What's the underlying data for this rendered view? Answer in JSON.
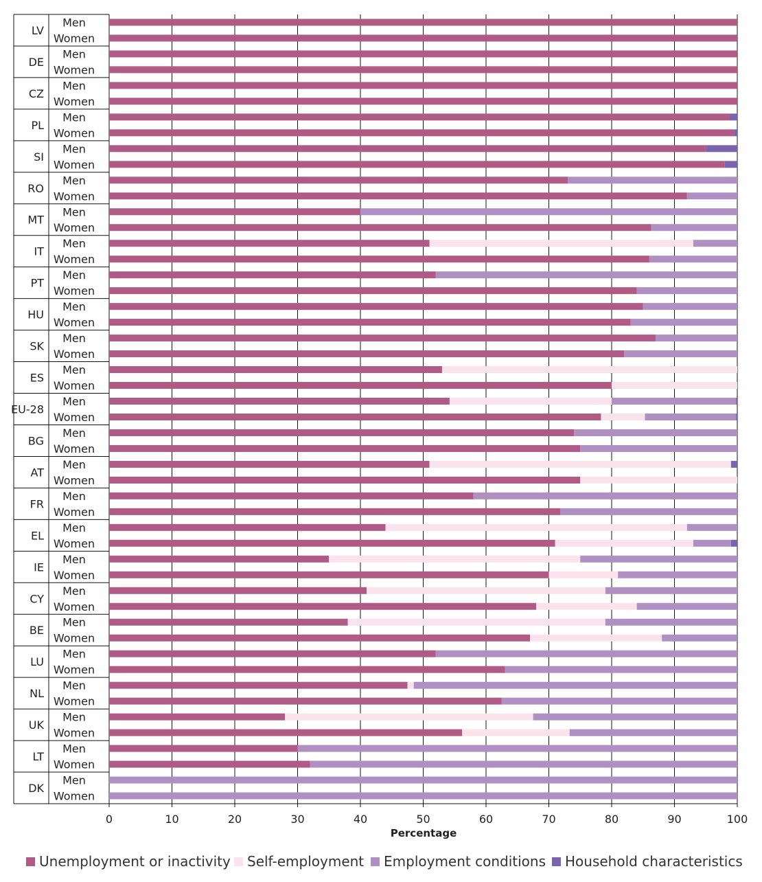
{
  "chart_data": {
    "type": "bar",
    "orientation": "horizontal",
    "stacked": true,
    "xlabel": "Percentage",
    "xlim": [
      0,
      100
    ],
    "xticks": [
      0,
      10,
      20,
      30,
      40,
      50,
      60,
      70,
      80,
      90,
      100
    ],
    "grid": true,
    "legend_position": "bottom",
    "sexes": [
      "Men",
      "Women"
    ],
    "series": [
      {
        "name": "Unemployment or inactivity",
        "color": "#b05a86"
      },
      {
        "name": "Self-employment",
        "color": "#fae3ec"
      },
      {
        "name": "Employment conditions",
        "color": "#b08fc3"
      },
      {
        "name": "Household characteristics",
        "color": "#7a64ad"
      }
    ],
    "countries": [
      {
        "code": "LV",
        "men": [
          100,
          0,
          0,
          0
        ],
        "women": [
          100,
          0,
          0,
          0
        ]
      },
      {
        "code": "DE",
        "men": [
          100,
          0,
          0,
          0
        ],
        "women": [
          100,
          0,
          0,
          0
        ]
      },
      {
        "code": "CZ",
        "men": [
          100,
          0,
          0,
          0
        ],
        "women": [
          100,
          0,
          0,
          0
        ]
      },
      {
        "code": "PL",
        "men": [
          98.8,
          0,
          0,
          1.2
        ],
        "women": [
          99.5,
          0,
          0,
          0.5
        ]
      },
      {
        "code": "SI",
        "men": [
          95,
          0,
          0,
          5
        ],
        "women": [
          98,
          0,
          0,
          2
        ]
      },
      {
        "code": "RO",
        "men": [
          73,
          0,
          27,
          0
        ],
        "women": [
          92,
          0,
          8,
          0
        ]
      },
      {
        "code": "MT",
        "men": [
          40,
          0,
          60,
          0
        ],
        "women": [
          86.3,
          0,
          13.7,
          0
        ]
      },
      {
        "code": "IT",
        "men": [
          51,
          42,
          7,
          0
        ],
        "women": [
          86,
          0,
          14,
          0
        ]
      },
      {
        "code": "PT",
        "men": [
          52,
          0,
          48,
          0
        ],
        "women": [
          84,
          0,
          16,
          0
        ]
      },
      {
        "code": "HU",
        "men": [
          85,
          0,
          15,
          0
        ],
        "women": [
          83,
          0,
          17,
          0
        ]
      },
      {
        "code": "SK",
        "men": [
          87,
          0,
          13,
          0
        ],
        "women": [
          82,
          0,
          18,
          0
        ]
      },
      {
        "code": "ES",
        "men": [
          53,
          47,
          0,
          0
        ],
        "women": [
          80,
          20,
          0,
          0
        ]
      },
      {
        "code": "EU-28",
        "men": [
          54.2,
          25.8,
          19.8,
          0.2
        ],
        "women": [
          78.3,
          7,
          14.5,
          0.2
        ]
      },
      {
        "code": "BG",
        "men": [
          74,
          0,
          26,
          0
        ],
        "women": [
          75,
          0,
          25,
          0
        ]
      },
      {
        "code": "AT",
        "men": [
          51,
          48,
          0,
          1
        ],
        "women": [
          75,
          25,
          0,
          0
        ]
      },
      {
        "code": "FR",
        "men": [
          58,
          0,
          42,
          0
        ],
        "women": [
          71.8,
          0,
          28.2,
          0
        ]
      },
      {
        "code": "EL",
        "men": [
          44,
          48,
          8,
          0
        ],
        "women": [
          71,
          22,
          6,
          1
        ]
      },
      {
        "code": "IE",
        "men": [
          35,
          40,
          25,
          0
        ],
        "women": [
          70,
          11,
          19,
          0
        ]
      },
      {
        "code": "CY",
        "men": [
          41,
          38,
          21,
          0
        ],
        "women": [
          68,
          16,
          16,
          0
        ]
      },
      {
        "code": "BE",
        "men": [
          38,
          41,
          21,
          0
        ],
        "women": [
          67,
          21,
          12,
          0
        ]
      },
      {
        "code": "LU",
        "men": [
          52,
          0,
          48,
          0
        ],
        "women": [
          63,
          0,
          37,
          0
        ]
      },
      {
        "code": "NL",
        "men": [
          47.5,
          1,
          51.5,
          0
        ],
        "women": [
          62.5,
          0,
          37.5,
          0
        ]
      },
      {
        "code": "UK",
        "men": [
          28,
          39.5,
          32.5,
          0
        ],
        "women": [
          56.2,
          17.1,
          26.7,
          0
        ]
      },
      {
        "code": "LT",
        "men": [
          30,
          0,
          70,
          0
        ],
        "women": [
          32,
          0,
          68,
          0
        ]
      },
      {
        "code": "DK",
        "men": [
          0,
          0,
          100,
          0
        ],
        "women": [
          0,
          0,
          100,
          0
        ]
      }
    ]
  }
}
